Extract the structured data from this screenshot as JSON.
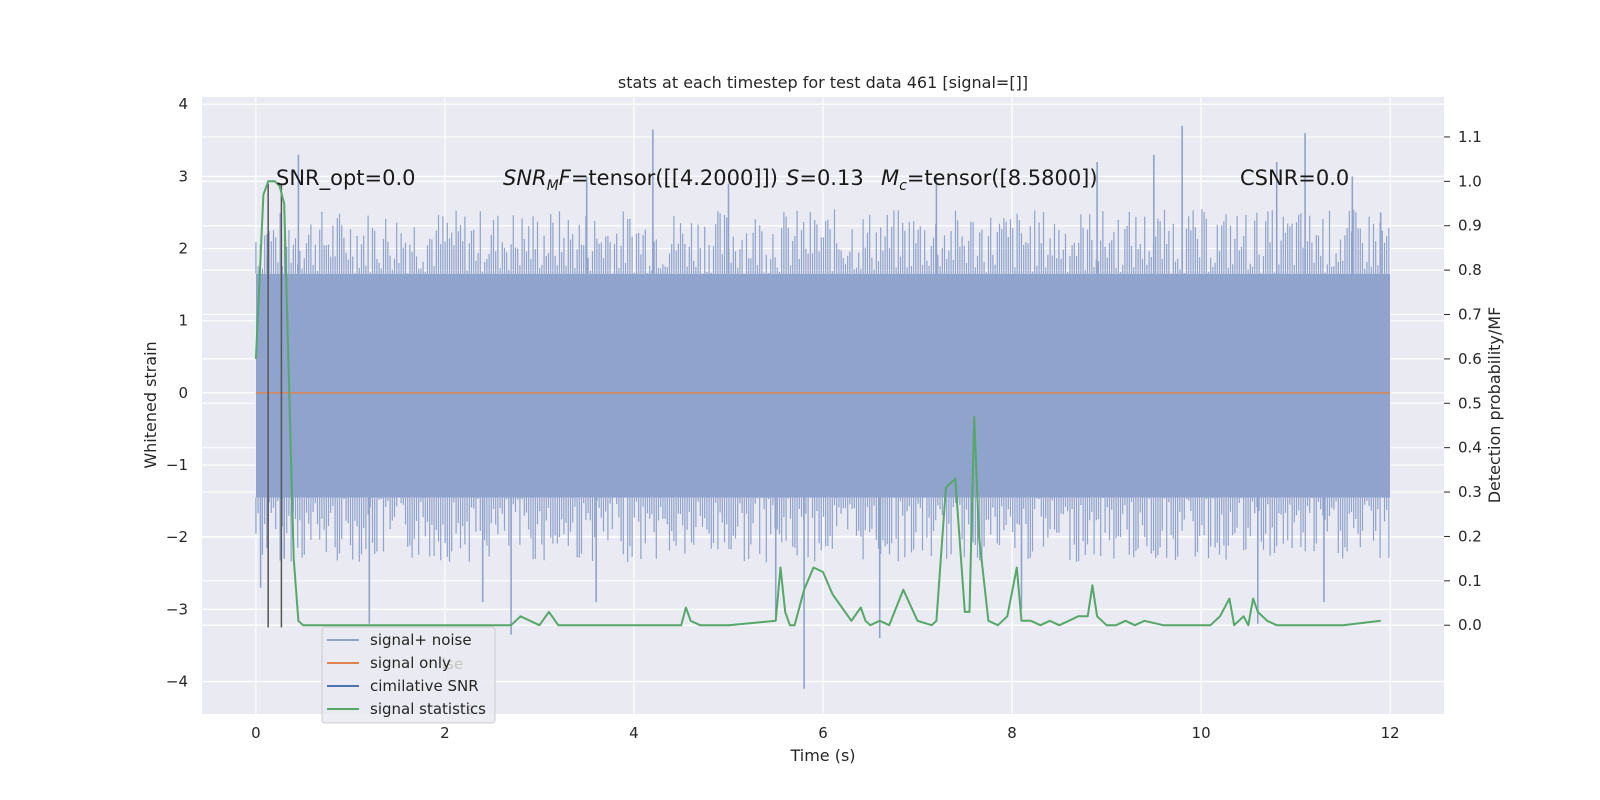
{
  "chart_data": {
    "type": "line",
    "title": "stats at each timestep for test data 461 [signal=[]]",
    "xlabel": "Time (s)",
    "ylabel": "Whitened strain",
    "ylabel_right": "Detection probability/MF",
    "xlim": [
      -0.57,
      12.57
    ],
    "ylim": [
      -4.45,
      4.1
    ],
    "ylim_right": [
      -0.2,
      1.19
    ],
    "grid": true,
    "x_ticks": [
      "0",
      "2",
      "4",
      "6",
      "8",
      "10",
      "12"
    ],
    "y_ticks": [
      "4",
      "3",
      "2",
      "1",
      "0",
      "−1",
      "−2",
      "−3",
      "−4"
    ],
    "y_right_ticks": [
      "1.1",
      "1.0",
      "0.9",
      "0.8",
      "0.7",
      "0.6",
      "0.5",
      "0.4",
      "0.3",
      "0.2",
      "0.1",
      "0.0"
    ],
    "annotations": {
      "snr_opt": "SNR_opt=0.0",
      "snr_mf_sym": "SNR",
      "snr_mf_sub": "M",
      "snr_mf_sym2": "F",
      "snr_mf_val": "=tensor([[4.2000]])",
      "s_sym": "S",
      "s_val": "=0.13",
      "mc_sym": "M",
      "mc_sub": "c",
      "mc_val": "=tensor([8.5800])",
      "csnr": "CSNR=0.0"
    },
    "legend": {
      "placement": "lower-left",
      "entries": [
        "signal+ noise",
        "signal only",
        "cimilative SNR",
        "signal statistics"
      ],
      "ghost_entries": [
        "ise",
        "s"
      ]
    },
    "colors": {
      "noise": "#8fa3cc",
      "signal": "#dd8452",
      "snr": "#4c72b0",
      "stats": "#55a868",
      "vline": "#555555",
      "background": "#eaeaf2"
    },
    "series": [
      {
        "name": "signal+ noise",
        "axis": "left",
        "x_range": [
          0,
          12
        ],
        "band": [
          -1.45,
          1.65
        ],
        "spikes": [
          {
            "x": 0.05,
            "y": -2.7
          },
          {
            "x": 0.12,
            "y": 2.2
          },
          {
            "x": 0.3,
            "y": -2.3
          },
          {
            "x": 0.45,
            "y": 3.3
          },
          {
            "x": 1.2,
            "y": -3.2
          },
          {
            "x": 2.4,
            "y": -2.9
          },
          {
            "x": 2.7,
            "y": -3.35
          },
          {
            "x": 3.5,
            "y": 3.0
          },
          {
            "x": 3.6,
            "y": -2.9
          },
          {
            "x": 4.2,
            "y": 3.65
          },
          {
            "x": 5.0,
            "y": 2.9
          },
          {
            "x": 5.5,
            "y": -3.1
          },
          {
            "x": 5.8,
            "y": -4.1
          },
          {
            "x": 6.6,
            "y": -3.4
          },
          {
            "x": 7.2,
            "y": 3.0
          },
          {
            "x": 8.1,
            "y": -3.0
          },
          {
            "x": 8.9,
            "y": 3.2
          },
          {
            "x": 9.5,
            "y": 3.3
          },
          {
            "x": 9.8,
            "y": 3.7
          },
          {
            "x": 10.6,
            "y": -3.2
          },
          {
            "x": 10.8,
            "y": 3.2
          },
          {
            "x": 11.1,
            "y": 3.6
          },
          {
            "x": 11.3,
            "y": -2.9
          },
          {
            "x": 11.6,
            "y": 3.0
          },
          {
            "x": 11.9,
            "y": 2.5
          }
        ]
      },
      {
        "name": "signal only",
        "axis": "left",
        "x": [
          0,
          12
        ],
        "y": [
          0,
          0
        ]
      },
      {
        "name": "cimilative SNR",
        "axis": "vertical-lines",
        "x": [
          0.13,
          0.27
        ],
        "y_range": [
          -3.25,
          2.9
        ]
      },
      {
        "name": "signal statistics",
        "axis": "right",
        "x": [
          0.0,
          0.08,
          0.13,
          0.2,
          0.25,
          0.3,
          0.4,
          0.45,
          0.5,
          0.6,
          0.8,
          1.0,
          1.5,
          2.0,
          2.5,
          2.7,
          2.8,
          3.0,
          3.1,
          3.2,
          3.5,
          4.0,
          4.5,
          4.55,
          4.6,
          4.7,
          5.0,
          5.5,
          5.55,
          5.6,
          5.65,
          5.7,
          5.8,
          5.9,
          6.0,
          6.1,
          6.2,
          6.3,
          6.4,
          6.45,
          6.5,
          6.6,
          6.7,
          6.85,
          7.0,
          7.15,
          7.2,
          7.3,
          7.4,
          7.5,
          7.55,
          7.6,
          7.65,
          7.75,
          7.85,
          7.95,
          8.05,
          8.1,
          8.2,
          8.3,
          8.4,
          8.5,
          8.6,
          8.7,
          8.8,
          8.85,
          8.9,
          9.0,
          9.1,
          9.2,
          9.3,
          9.4,
          9.6,
          9.8,
          10.0,
          10.1,
          10.2,
          10.3,
          10.35,
          10.45,
          10.5,
          10.55,
          10.6,
          10.7,
          10.8,
          11.0,
          11.5,
          11.9
        ],
        "y": [
          0.6,
          0.97,
          1.0,
          1.0,
          0.99,
          0.95,
          0.15,
          0.01,
          0.0,
          0.0,
          0.0,
          0.0,
          0.0,
          0.0,
          0.0,
          0.0,
          0.02,
          0.0,
          0.03,
          0.0,
          0.0,
          0.0,
          0.0,
          0.04,
          0.01,
          0.0,
          0.0,
          0.01,
          0.13,
          0.03,
          0.0,
          0.0,
          0.08,
          0.13,
          0.12,
          0.07,
          0.04,
          0.01,
          0.04,
          0.01,
          0.0,
          0.01,
          0.0,
          0.08,
          0.01,
          0.0,
          0.01,
          0.31,
          0.33,
          0.03,
          0.03,
          0.47,
          0.2,
          0.01,
          0.0,
          0.02,
          0.13,
          0.01,
          0.01,
          0.0,
          0.01,
          0.0,
          0.01,
          0.02,
          0.02,
          0.09,
          0.02,
          0.0,
          0.0,
          0.01,
          0.0,
          0.01,
          0.0,
          0.0,
          0.0,
          0.0,
          0.02,
          0.06,
          0.0,
          0.02,
          0.0,
          0.06,
          0.03,
          0.01,
          0.0,
          0.0,
          0.0,
          0.01
        ]
      }
    ]
  }
}
